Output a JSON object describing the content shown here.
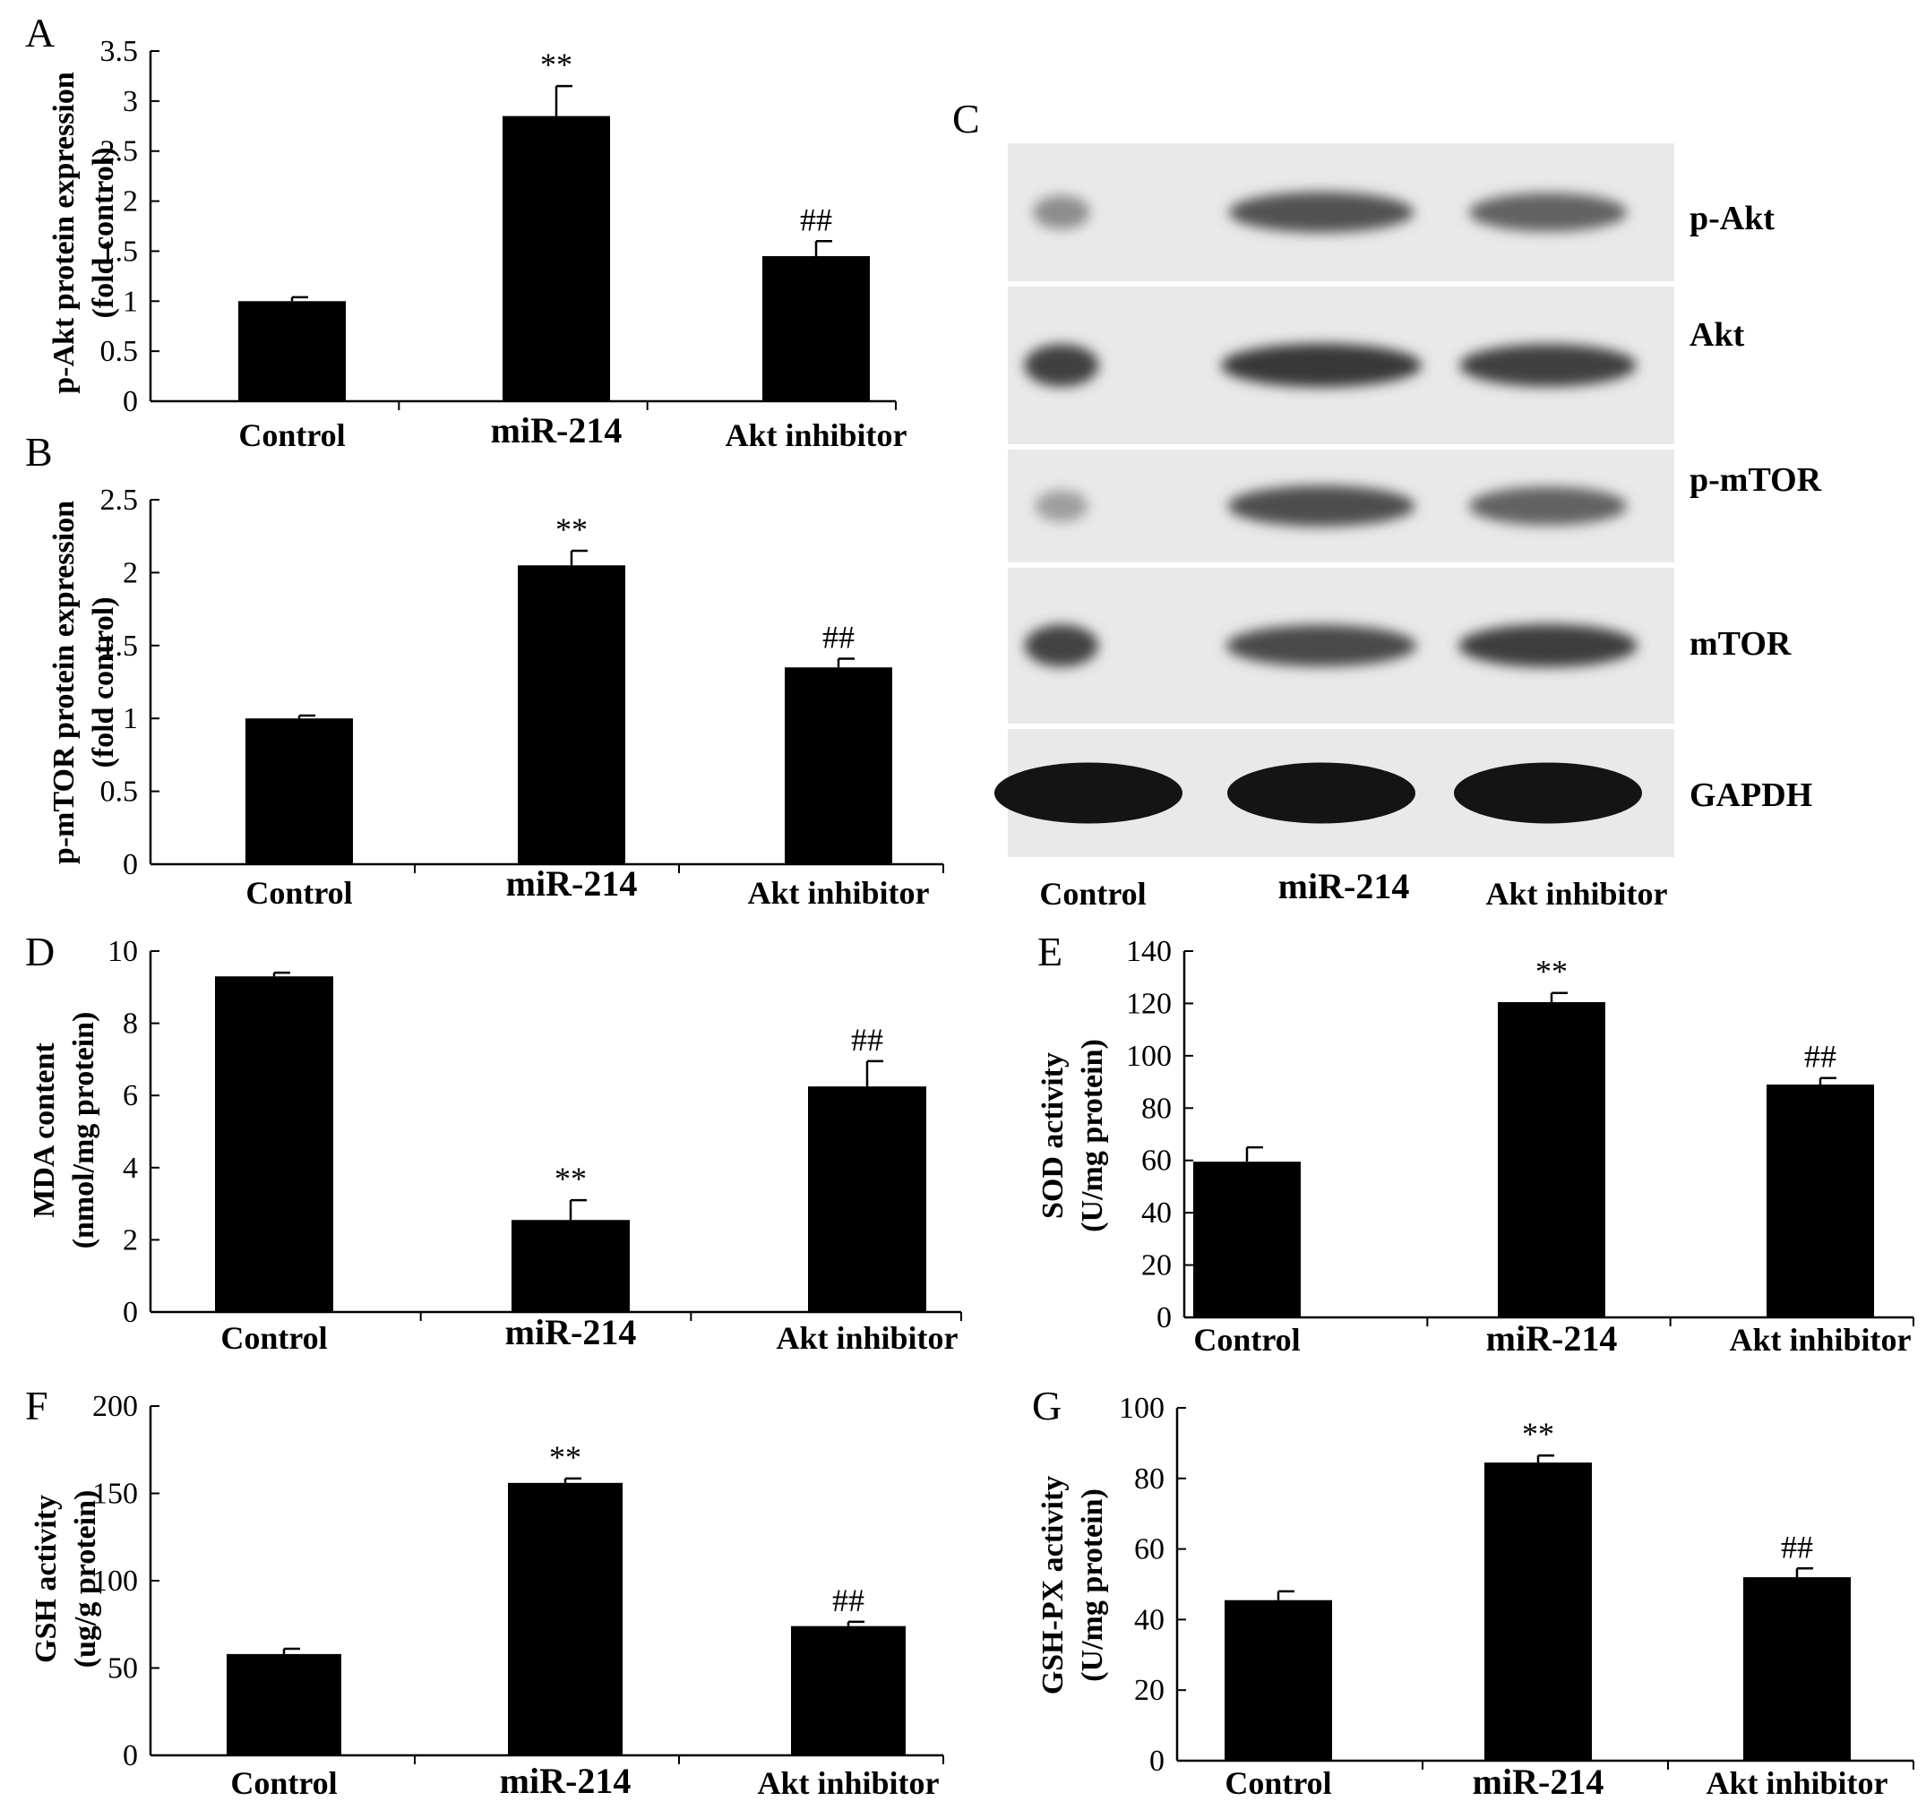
{
  "chart_data": [
    {
      "panel": "A",
      "type": "bar",
      "categories": [
        "Control",
        "miR-214",
        "Akt inhibitor"
      ],
      "values": [
        1.0,
        2.85,
        1.45
      ],
      "errors": [
        0.04,
        0.3,
        0.15
      ],
      "significance": [
        "",
        "**",
        "##"
      ],
      "ylabel_lines": [
        "p-Akt protein expression",
        "(fold control)"
      ],
      "ylim": [
        0,
        3.5
      ],
      "yticks": [
        0,
        0.5,
        1,
        1.5,
        2,
        2.5,
        3,
        3.5
      ],
      "ytick_labels": [
        "0",
        "0.5",
        "1",
        "1.5",
        "2",
        "2.5",
        "3",
        "3.5"
      ]
    },
    {
      "panel": "B",
      "type": "bar",
      "categories": [
        "Control",
        "miR-214",
        "Akt inhibitor"
      ],
      "values": [
        1.0,
        2.05,
        1.35
      ],
      "errors": [
        0.02,
        0.1,
        0.06
      ],
      "significance": [
        "",
        "**",
        "##"
      ],
      "ylabel_lines": [
        "p-mTOR protein expression",
        "(fold control)"
      ],
      "ylim": [
        0,
        2.5
      ],
      "yticks": [
        0,
        0.5,
        1,
        1.5,
        2,
        2.5
      ],
      "ytick_labels": [
        "0",
        "0.5",
        "1",
        "1.5",
        "2",
        "2.5"
      ]
    },
    {
      "panel": "D",
      "type": "bar",
      "categories": [
        "Control",
        "miR-214",
        "Akt inhibitor"
      ],
      "values": [
        9.3,
        2.55,
        6.25
      ],
      "errors": [
        0.1,
        0.55,
        0.7
      ],
      "significance": [
        "",
        "**",
        "##"
      ],
      "ylabel_lines": [
        "MDA content",
        "(nmol/mg protein)"
      ],
      "ylim": [
        0,
        10
      ],
      "yticks": [
        0,
        2,
        4,
        6,
        8,
        10
      ],
      "ytick_labels": [
        "0",
        "2",
        "4",
        "6",
        "8",
        "10"
      ]
    },
    {
      "panel": "E",
      "type": "bar",
      "categories": [
        "Control",
        "miR-214",
        "Akt inhibitor"
      ],
      "values": [
        59.5,
        120.5,
        89
      ],
      "errors": [
        5.5,
        3.5,
        2.5
      ],
      "significance": [
        "",
        "**",
        "##"
      ],
      "ylabel_lines": [
        "SOD activity",
        "(U/mg protein)"
      ],
      "ylim": [
        0,
        140
      ],
      "yticks": [
        0,
        20,
        40,
        60,
        80,
        100,
        120,
        140
      ],
      "ytick_labels": [
        "0",
        "20",
        "40",
        "60",
        "80",
        "100",
        "120",
        "140"
      ]
    },
    {
      "panel": "F",
      "type": "bar",
      "categories": [
        "Control",
        "miR-214",
        "Akt inhibitor"
      ],
      "values": [
        58,
        156,
        74
      ],
      "errors": [
        3,
        2.5,
        2.5
      ],
      "significance": [
        "",
        "**",
        "##"
      ],
      "ylabel_lines": [
        "GSH activity",
        "(ug/g protein)"
      ],
      "ylim": [
        0,
        200
      ],
      "yticks": [
        0,
        50,
        100,
        150,
        200
      ],
      "ytick_labels": [
        "0",
        "50",
        "100",
        "150",
        "200"
      ]
    },
    {
      "panel": "G",
      "type": "bar",
      "categories": [
        "Control",
        "miR-214",
        "Akt inhibitor"
      ],
      "values": [
        45.5,
        84.5,
        52
      ],
      "errors": [
        2.5,
        2.0,
        2.5
      ],
      "significance": [
        "",
        "**",
        "##"
      ],
      "ylabel_lines": [
        "GSH-PX activity",
        "(U/mg protein)"
      ],
      "ylim": [
        0,
        100
      ],
      "yticks": [
        0,
        20,
        40,
        60,
        80,
        100
      ],
      "ytick_labels": [
        "0",
        "20",
        "40",
        "60",
        "80",
        "100"
      ]
    }
  ],
  "western_blot": {
    "panel": "C",
    "lanes": [
      "Control",
      "miR-214",
      "Akt inhibitor"
    ],
    "rows": [
      {
        "label": "p-Akt",
        "band_intensity": [
          0.35,
          0.7,
          0.6
        ]
      },
      {
        "label": "Akt",
        "band_intensity": [
          0.8,
          0.85,
          0.8
        ]
      },
      {
        "label": "p-mTOR",
        "band_intensity": [
          0.25,
          0.72,
          0.6
        ]
      },
      {
        "label": "mTOR",
        "band_intensity": [
          0.78,
          0.75,
          0.82
        ]
      },
      {
        "label": "GAPDH",
        "band_intensity": [
          1.0,
          1.0,
          1.0
        ]
      }
    ]
  }
}
